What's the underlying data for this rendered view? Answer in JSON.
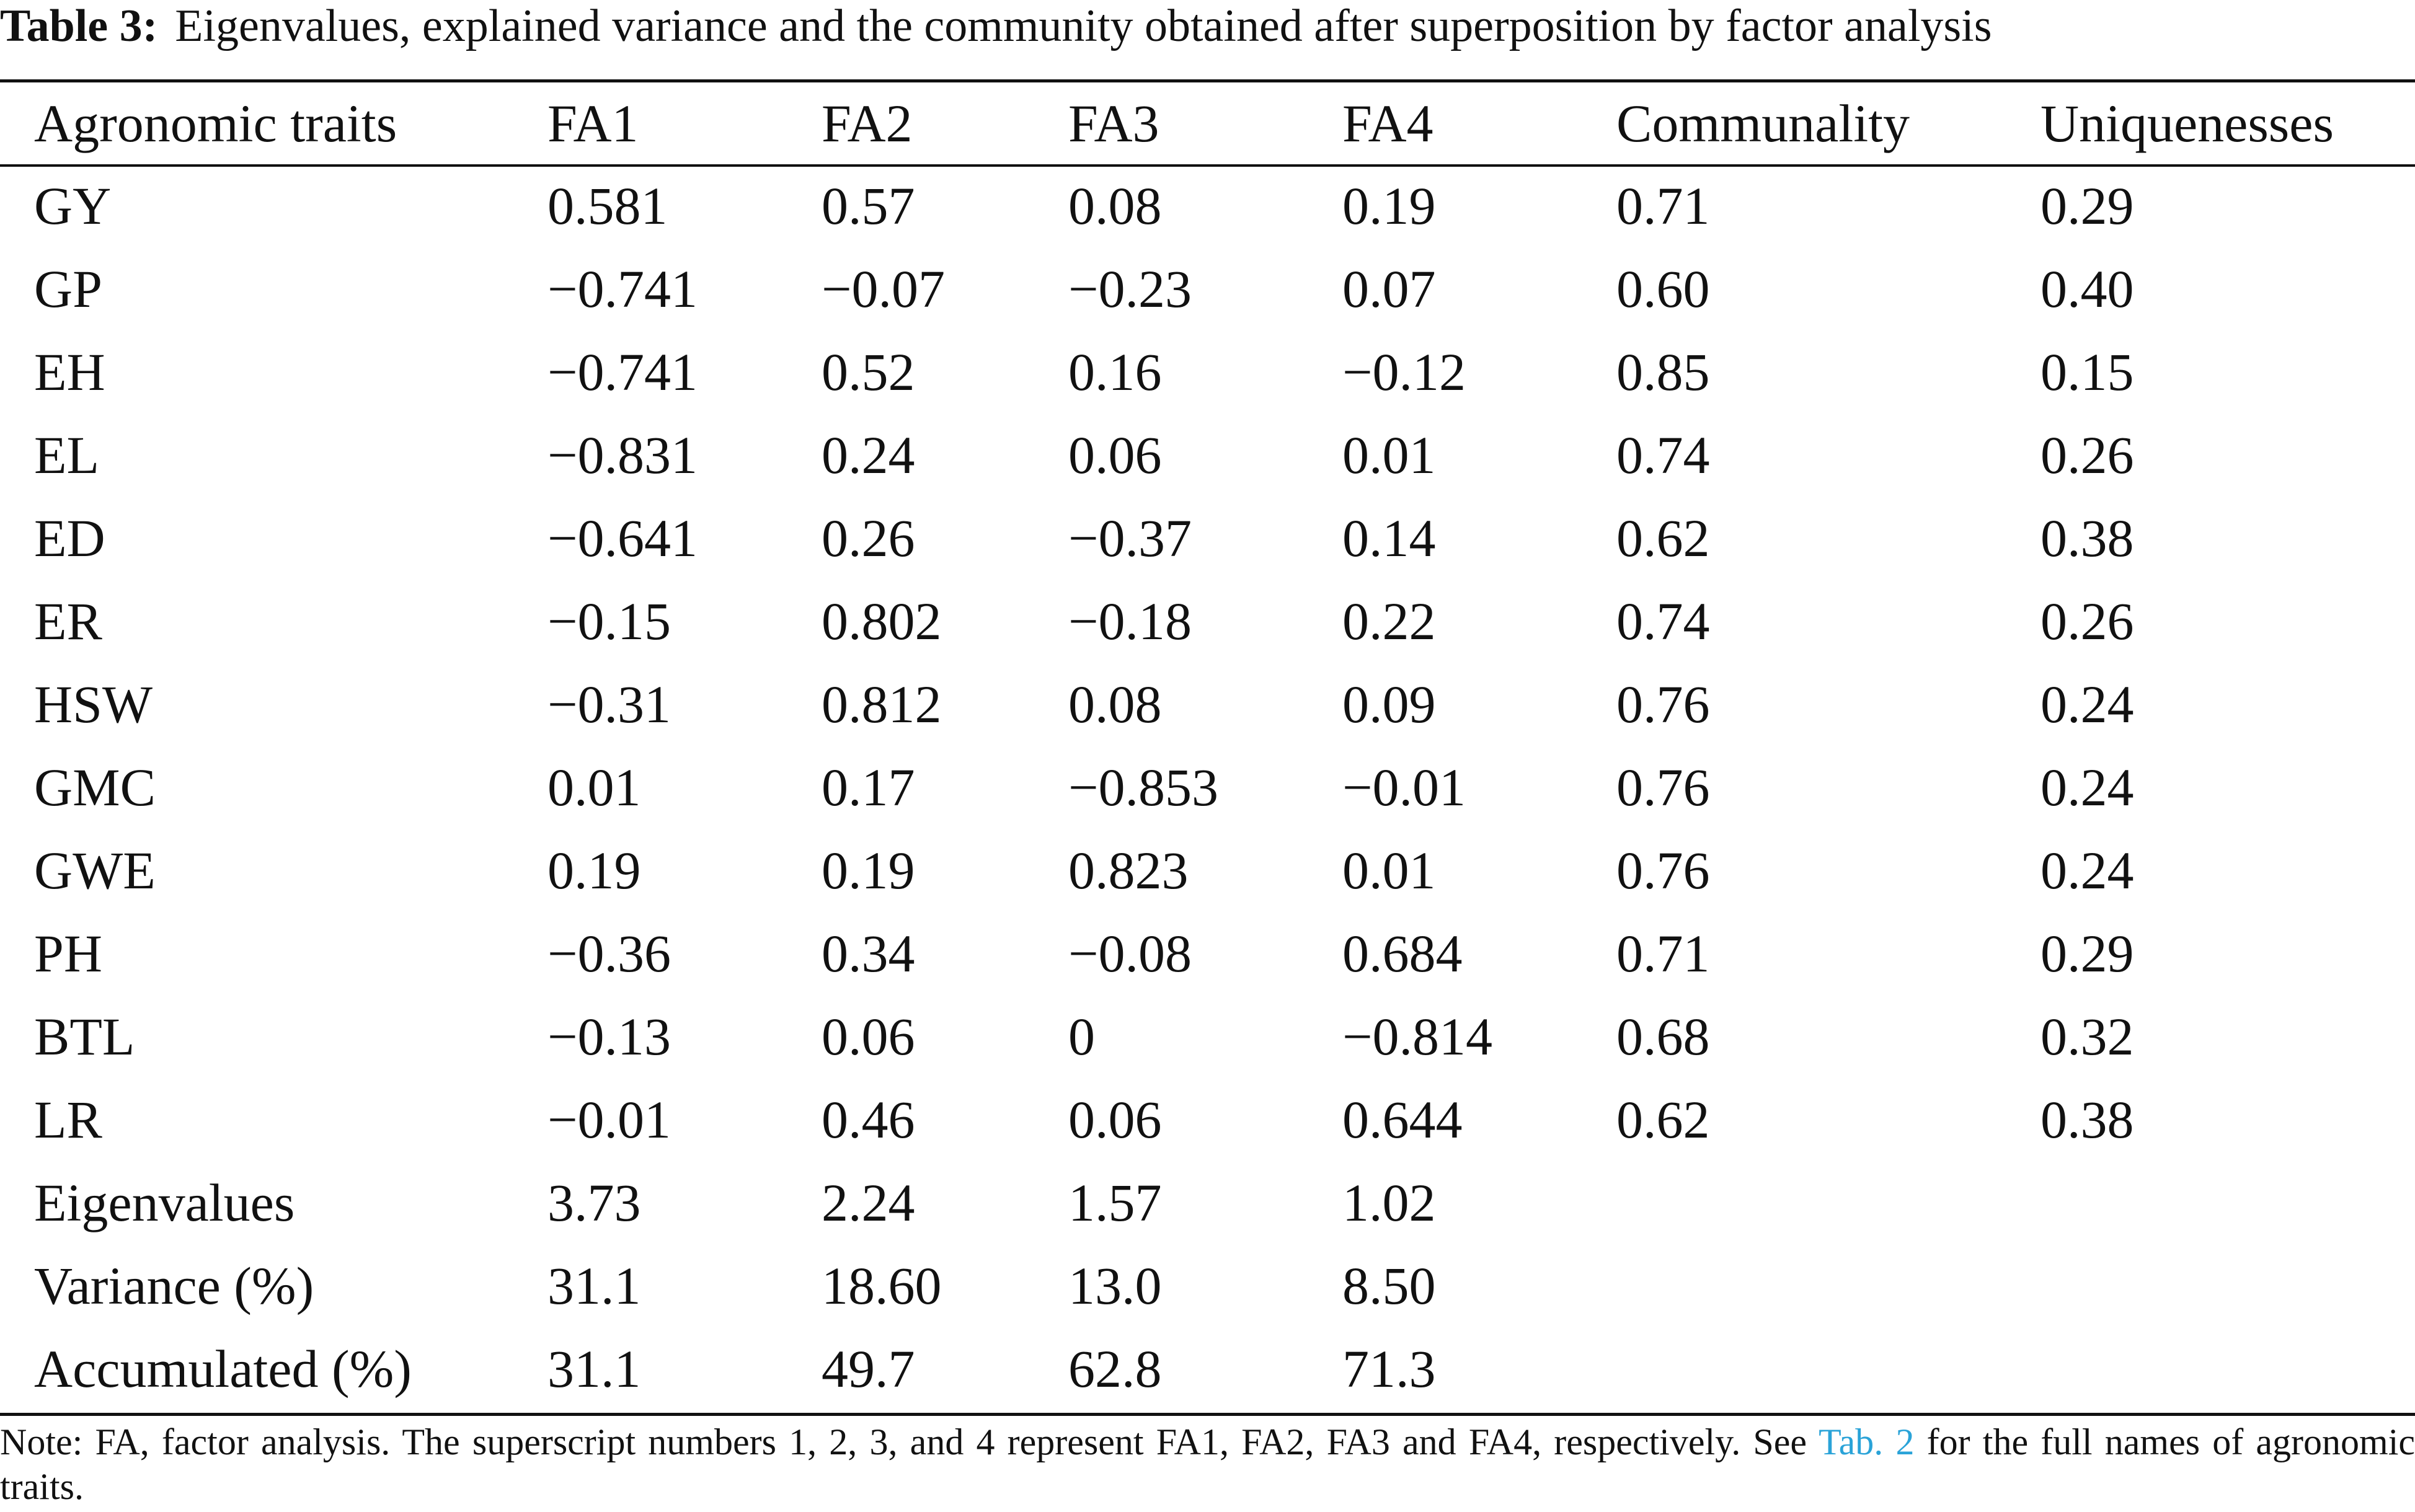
{
  "caption": {
    "label": "Table 3:",
    "text": "Eigenvalues, explained variance and the community obtained after superposition by factor analysis"
  },
  "table": {
    "headers": [
      "Agronomic traits",
      "FA1",
      "FA2",
      "FA3",
      "FA4",
      "Communality",
      "Uniquenesses"
    ],
    "rows": [
      [
        "GY",
        "0.581",
        "0.57",
        "0.08",
        "0.19",
        "0.71",
        "0.29"
      ],
      [
        "GP",
        "−0.741",
        "−0.07",
        "−0.23",
        "0.07",
        "0.60",
        "0.40"
      ],
      [
        "EH",
        "−0.741",
        "0.52",
        "0.16",
        "−0.12",
        "0.85",
        "0.15"
      ],
      [
        "EL",
        "−0.831",
        "0.24",
        "0.06",
        "0.01",
        "0.74",
        "0.26"
      ],
      [
        "ED",
        "−0.641",
        "0.26",
        "−0.37",
        "0.14",
        "0.62",
        "0.38"
      ],
      [
        "ER",
        "−0.15",
        "0.802",
        "−0.18",
        "0.22",
        "0.74",
        "0.26"
      ],
      [
        "HSW",
        "−0.31",
        "0.812",
        "0.08",
        "0.09",
        "0.76",
        "0.24"
      ],
      [
        "GMC",
        "0.01",
        "0.17",
        "−0.853",
        "−0.01",
        "0.76",
        "0.24"
      ],
      [
        "GWE",
        "0.19",
        "0.19",
        "0.823",
        "0.01",
        "0.76",
        "0.24"
      ],
      [
        "PH",
        "−0.36",
        "0.34",
        "−0.08",
        "0.684",
        "0.71",
        "0.29"
      ],
      [
        "BTL",
        "−0.13",
        "0.06",
        "0",
        "−0.814",
        "0.68",
        "0.32"
      ],
      [
        "LR",
        "−0.01",
        "0.46",
        "0.06",
        "0.644",
        "0.62",
        "0.38"
      ],
      [
        "Eigenvalues",
        "3.73",
        "2.24",
        "1.57",
        "1.02",
        "",
        ""
      ],
      [
        "Variance (%)",
        "31.1",
        "18.60",
        "13.0",
        "8.50",
        "",
        ""
      ],
      [
        "Accumulated (%)",
        "31.1",
        "49.7",
        "62.8",
        "71.3",
        "",
        ""
      ]
    ]
  },
  "note": {
    "before": "Note: FA, factor analysis. The superscript numbers 1, 2, 3, and 4 represent FA1, FA2, FA3 and FA4, respectively. See ",
    "link": "Tab. 2",
    "after": " for the full names of agronomic traits."
  }
}
